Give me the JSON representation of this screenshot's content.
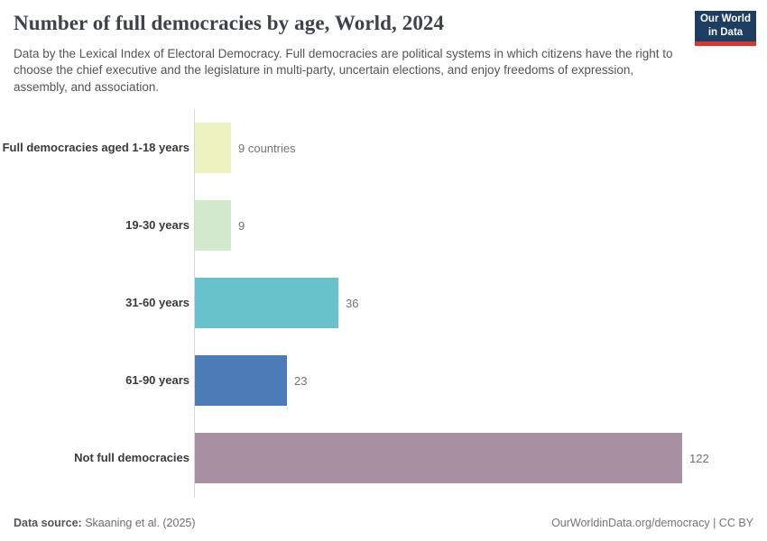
{
  "header": {
    "logo": {
      "line1": "Our World",
      "line2": "in Data",
      "bg_color": "#1d3d63",
      "accent_color": "#dc352e"
    }
  },
  "chart_data": {
    "type": "bar",
    "orientation": "horizontal",
    "title": "Number of full democracies by age, World, 2024",
    "subtitle": "Data by the Lexical Index of Electoral Democracy. Full democracies are political systems in which citizens have the right to choose the chief executive and the legislature in multi-party, uncertain elections, and enjoy freedoms of expression, assembly, and association.",
    "categories": [
      "Full democracies aged 1-18 years",
      "19-30 years",
      "31-60 years",
      "61-90 years",
      "Not full democracies"
    ],
    "values": [
      9,
      9,
      36,
      23,
      122
    ],
    "value_labels": [
      "9 countries",
      "9",
      "36",
      "23",
      "122"
    ],
    "colors": [
      "#eef3c2",
      "#d2e9cb",
      "#67c2cc",
      "#4c7cb8",
      "#a98fa2"
    ],
    "unit": "countries",
    "xlim": [
      0,
      122
    ],
    "grid": false,
    "legend": "none",
    "axis_color": "#d6d6d6"
  },
  "footer": {
    "datasource_label": "Data source:",
    "datasource_value": "Skaaning et al. (2025)",
    "link_text": "OurWorldinData.org/democracy | CC BY"
  }
}
